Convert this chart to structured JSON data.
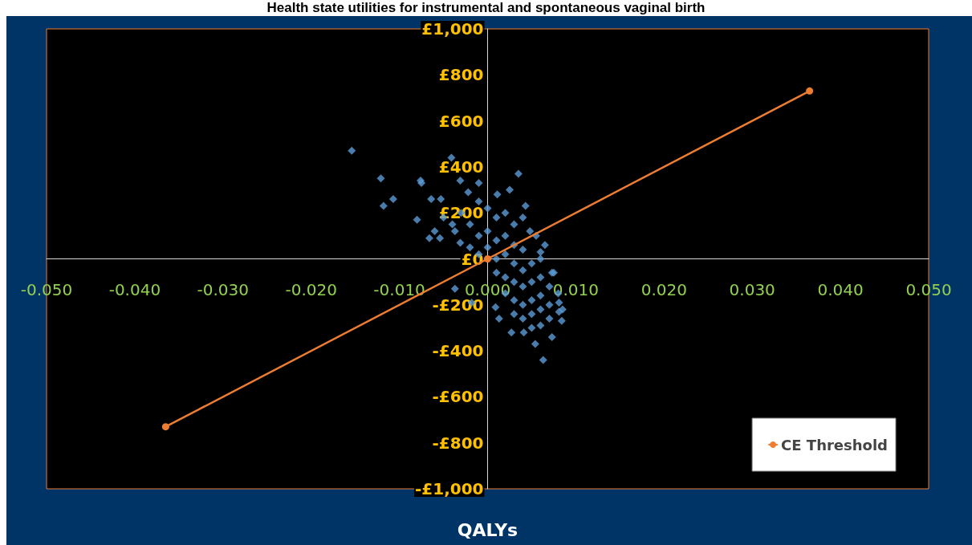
{
  "chart_data": {
    "type": "scatter",
    "title": "Health state utilities for instrumental and spontaneous vaginal birth",
    "xlabel": "QALYs",
    "xlim": [
      -0.05,
      0.05
    ],
    "ylim": [
      -1000,
      1000
    ],
    "xticks": [
      {
        "value": -0.05,
        "label": "-0.050"
      },
      {
        "value": -0.04,
        "label": "-0.040"
      },
      {
        "value": -0.03,
        "label": "-0.030"
      },
      {
        "value": -0.02,
        "label": "-0.020"
      },
      {
        "value": -0.01,
        "label": "-0.010"
      },
      {
        "value": 0,
        "label": "0.000"
      },
      {
        "value": 0.01,
        "label": "0.010"
      },
      {
        "value": 0.02,
        "label": "0.020"
      },
      {
        "value": 0.03,
        "label": "0.030"
      },
      {
        "value": 0.04,
        "label": "0.040"
      },
      {
        "value": 0.05,
        "label": "0.050"
      }
    ],
    "yticks": [
      {
        "value": -1000,
        "label": "-£1,000"
      },
      {
        "value": -800,
        "label": "-£800"
      },
      {
        "value": -600,
        "label": "-£600"
      },
      {
        "value": -400,
        "label": "-£400"
      },
      {
        "value": -200,
        "label": "-£200"
      },
      {
        "value": 0,
        "label": "£0"
      },
      {
        "value": 200,
        "label": "£200"
      },
      {
        "value": 400,
        "label": "£400"
      },
      {
        "value": 600,
        "label": "£600"
      },
      {
        "value": 800,
        "label": "£800"
      },
      {
        "value": 1000,
        "label": "£1,000"
      }
    ],
    "grid": false,
    "legend": "bottom right",
    "series": [
      {
        "type": "scatter",
        "marker": "diamond",
        "color": "#5b9bd5",
        "x": [
          -0.0154,
          -0.0121,
          -0.0118,
          -0.0107,
          -0.0076,
          -0.0041,
          0.0035,
          -0.0075,
          -0.0031,
          -0.0022,
          -0.001,
          0.0025,
          0.0043,
          -0.0064,
          -0.0053,
          -0.008,
          -0.0054,
          -0.0037,
          -0.0031,
          -0.0037,
          -0.0018,
          0.0009,
          0.0013,
          0.0027,
          0.0041,
          0.0054,
          0.0063,
          0.0073,
          0.0084,
          0.0081,
          0.0073,
          0.006,
          0.0048,
          0.0011,
          0.0081,
          -0.003,
          -0.002,
          -0.001,
          0,
          0.001,
          0.002,
          0.003,
          -0.001,
          0,
          0.001,
          0.002,
          0.003,
          0.004,
          -0.002,
          -0.001,
          0,
          0.001,
          0.002,
          0.003,
          0.004,
          0.005,
          0.006,
          0.001,
          0.002,
          0.003,
          0.004,
          0.005,
          0.006,
          0.007,
          0.002,
          0.003,
          0.004,
          0.005,
          0.006,
          0.007,
          0.003,
          0.004,
          0.005,
          0.006,
          0.007,
          0.005,
          0.006,
          -0.004,
          -0.005,
          -0.006,
          0.004,
          0.0055,
          0.0065,
          0.0075,
          0.008,
          0.0085,
          -0.0066
        ],
        "values": [
          470,
          350,
          230,
          260,
          340,
          440,
          370,
          330,
          340,
          290,
          330,
          300,
          230,
          260,
          260,
          170,
          90,
          120,
          70,
          -130,
          -190,
          -210,
          -260,
          -320,
          -320,
          -370,
          -440,
          -340,
          -270,
          -230,
          -60,
          30,
          120,
          280,
          -190,
          200,
          150,
          250,
          220,
          180,
          200,
          150,
          100,
          120,
          80,
          100,
          60,
          40,
          50,
          20,
          50,
          0,
          20,
          -20,
          -50,
          -20,
          0,
          -60,
          -80,
          -100,
          -120,
          -100,
          -80,
          -120,
          -150,
          -180,
          -200,
          -180,
          -160,
          -200,
          -240,
          -260,
          -240,
          -220,
          -260,
          -300,
          -290,
          150,
          180,
          120,
          180,
          100,
          60,
          -60,
          -150,
          -220,
          90
        ]
      },
      {
        "type": "line",
        "name": "CE Threshold",
        "marker": "circle",
        "line_style": "solid",
        "color": "#ed7d31",
        "x": [
          -0.0365,
          0,
          0.0365
        ],
        "values": [
          -730,
          0,
          730
        ]
      }
    ]
  }
}
